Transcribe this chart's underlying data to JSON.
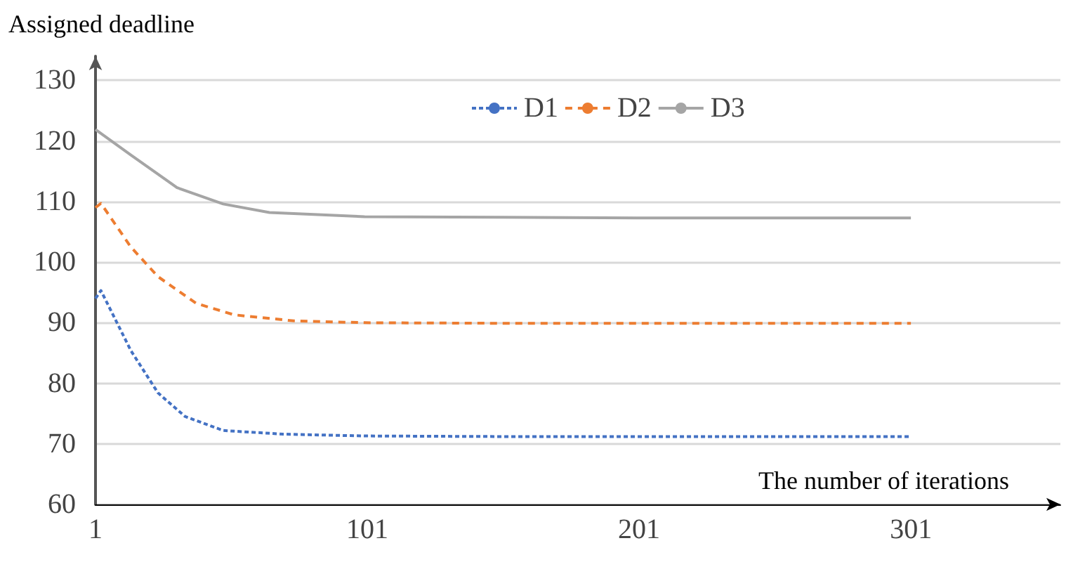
{
  "chart_data": {
    "type": "line",
    "xlabel": "The number of iterations",
    "ylabel": "Assigned deadline",
    "xlim": [
      1,
      356
    ],
    "xticks": [
      1,
      101,
      201,
      301
    ],
    "ylim": [
      60,
      134
    ],
    "yticks": [
      60,
      70,
      80,
      90,
      100,
      110,
      120,
      130
    ],
    "grid": "y",
    "legend": "top right",
    "marker": "none",
    "series": [
      {
        "name": "D1",
        "color": "#4472c4",
        "line_style": "dotted",
        "x": [
          1,
          3,
          14,
          24,
          34,
          48,
          70,
          100,
          150,
          200,
          250,
          301
        ],
        "values": [
          94,
          95.3,
          85.4,
          78.4,
          74.5,
          72.2,
          71.6,
          71.3,
          71.2,
          71.2,
          71.2,
          71.2
        ]
      },
      {
        "name": "D2",
        "color": "#ed7d31",
        "line_style": "dashed",
        "x": [
          1,
          3,
          14,
          24,
          38,
          52,
          74,
          100,
          150,
          200,
          250,
          301
        ],
        "values": [
          109,
          109.7,
          102.5,
          97.6,
          93.2,
          91.3,
          90.3,
          90,
          89.9,
          89.9,
          89.9,
          89.9
        ]
      },
      {
        "name": "D3",
        "color": "#a5a5a5",
        "line_style": "solid",
        "x": [
          1,
          14,
          31,
          48,
          65,
          100,
          150,
          200,
          250,
          301
        ],
        "values": [
          121.9,
          117.7,
          112.3,
          109.6,
          108.2,
          107.5,
          107.4,
          107.3,
          107.3,
          107.3
        ]
      }
    ]
  }
}
